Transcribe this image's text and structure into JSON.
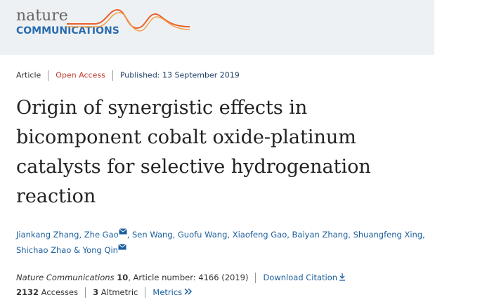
{
  "header": {
    "logo_top": "nature",
    "logo_bottom": "COMMUNICATIONS"
  },
  "meta": {
    "type": "Article",
    "access": "Open Access",
    "published": "Published: 13 September 2019"
  },
  "title": {
    "lines": [
      "Origin of synergistic effects in",
      "bicomponent cobalt oxide-platinum",
      "catalysts for selective hydrogenation",
      "reaction"
    ]
  },
  "authors": {
    "segments": [
      "Jiankang Zhang, Zhe Gao",
      ", Sen Wang, Guofu Wang, Xiaofeng Gao, Baiyan Zhang, Shuangfeng Xing,",
      "Shichao Zhao & Yong Qin"
    ]
  },
  "citation": {
    "journal": "Nature Communications",
    "volume": "10",
    "article_info": ", Article number: 4166 (2019)",
    "download": "Download Citation"
  },
  "metrics": {
    "accesses_count": "2132",
    "accesses_label": "Accesses",
    "altmetric_count": "3",
    "altmetric_label": "Altmetric",
    "link": "Metrics"
  }
}
